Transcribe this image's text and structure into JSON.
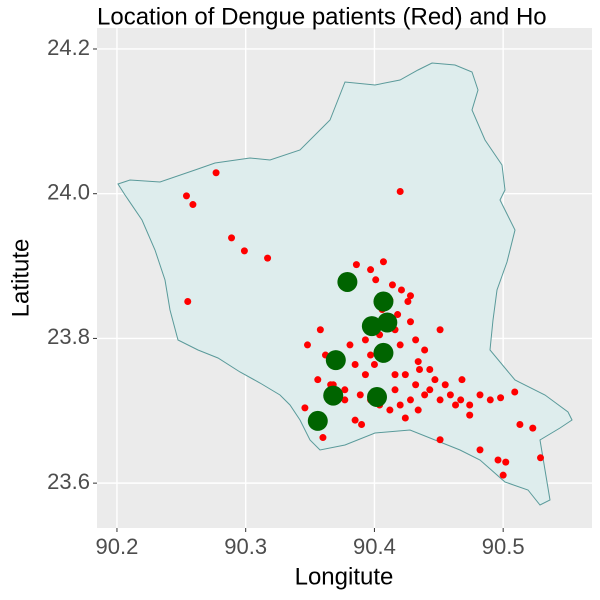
{
  "chart_data": {
    "type": "scatter",
    "title": "Location of Dengue patients (Red) and Ho",
    "x_label": "Longitute",
    "y_label": "Latitute",
    "xlim": [
      90.1845,
      90.569
    ],
    "ylim": [
      23.538,
      24.229
    ],
    "xticks": [
      90.2,
      90.3,
      90.4,
      90.5
    ],
    "yticks": [
      23.6,
      23.8,
      {
        "value": 24,
        "label": "24.0"
      },
      24.2
    ],
    "grid": true,
    "series": [
      {
        "color": "#ff0000",
        "x": [
          90.277,
          90.254,
          90.259,
          90.289,
          90.299,
          90.317,
          90.255,
          90.42,
          90.386,
          90.407,
          90.397,
          90.401,
          90.38,
          90.414,
          90.421,
          90.428,
          90.412,
          90.406,
          90.418,
          90.428,
          90.416,
          90.404,
          90.393,
          90.381,
          90.358,
          90.348,
          90.362,
          90.373,
          90.385,
          90.397,
          90.408,
          90.42,
          90.432,
          90.439,
          90.434,
          90.443,
          90.447,
          90.455,
          90.459,
          90.467,
          90.474,
          90.482,
          90.49,
          90.498,
          90.509,
          90.513,
          90.523,
          90.529,
          90.502,
          90.5,
          90.496,
          90.474,
          90.463,
          90.451,
          90.439,
          90.428,
          90.42,
          90.412,
          90.404,
          90.397,
          90.389,
          90.377,
          90.366,
          90.356,
          90.346,
          90.36,
          90.385,
          90.39,
          90.403,
          90.416,
          90.432,
          90.443,
          90.451,
          90.434,
          90.424,
          90.393,
          90.451,
          90.435,
          90.424,
          90.4,
          90.468,
          90.482,
          90.426,
          90.368,
          90.377,
          90.416
        ],
        "y": [
          24.029,
          23.997,
          23.985,
          23.939,
          23.921,
          23.911,
          23.851,
          24.003,
          23.902,
          23.906,
          23.895,
          23.881,
          23.877,
          23.874,
          23.867,
          23.859,
          23.853,
          23.84,
          23.833,
          23.823,
          23.812,
          23.805,
          23.798,
          23.791,
          23.812,
          23.791,
          23.777,
          23.77,
          23.764,
          23.777,
          23.784,
          23.791,
          23.798,
          23.784,
          23.768,
          23.757,
          23.743,
          23.736,
          23.722,
          23.715,
          23.708,
          23.722,
          23.715,
          23.718,
          23.726,
          23.681,
          23.676,
          23.635,
          23.629,
          23.611,
          23.632,
          23.694,
          23.708,
          23.715,
          23.722,
          23.715,
          23.708,
          23.701,
          23.708,
          23.715,
          23.722,
          23.729,
          23.736,
          23.743,
          23.704,
          23.663,
          23.687,
          23.681,
          23.722,
          23.729,
          23.736,
          23.729,
          23.66,
          23.701,
          23.69,
          23.75,
          23.812,
          23.757,
          23.75,
          23.764,
          23.743,
          23.646,
          23.851,
          23.736,
          23.715,
          23.75
        ]
      },
      {
        "color": "#006400",
        "x": [
          90.379,
          90.407,
          90.398,
          90.41,
          90.407,
          90.37,
          90.368,
          90.356,
          90.402
        ],
        "y": [
          23.878,
          23.851,
          23.817,
          23.822,
          23.78,
          23.77,
          23.721,
          23.686,
          23.719
        ]
      }
    ]
  }
}
